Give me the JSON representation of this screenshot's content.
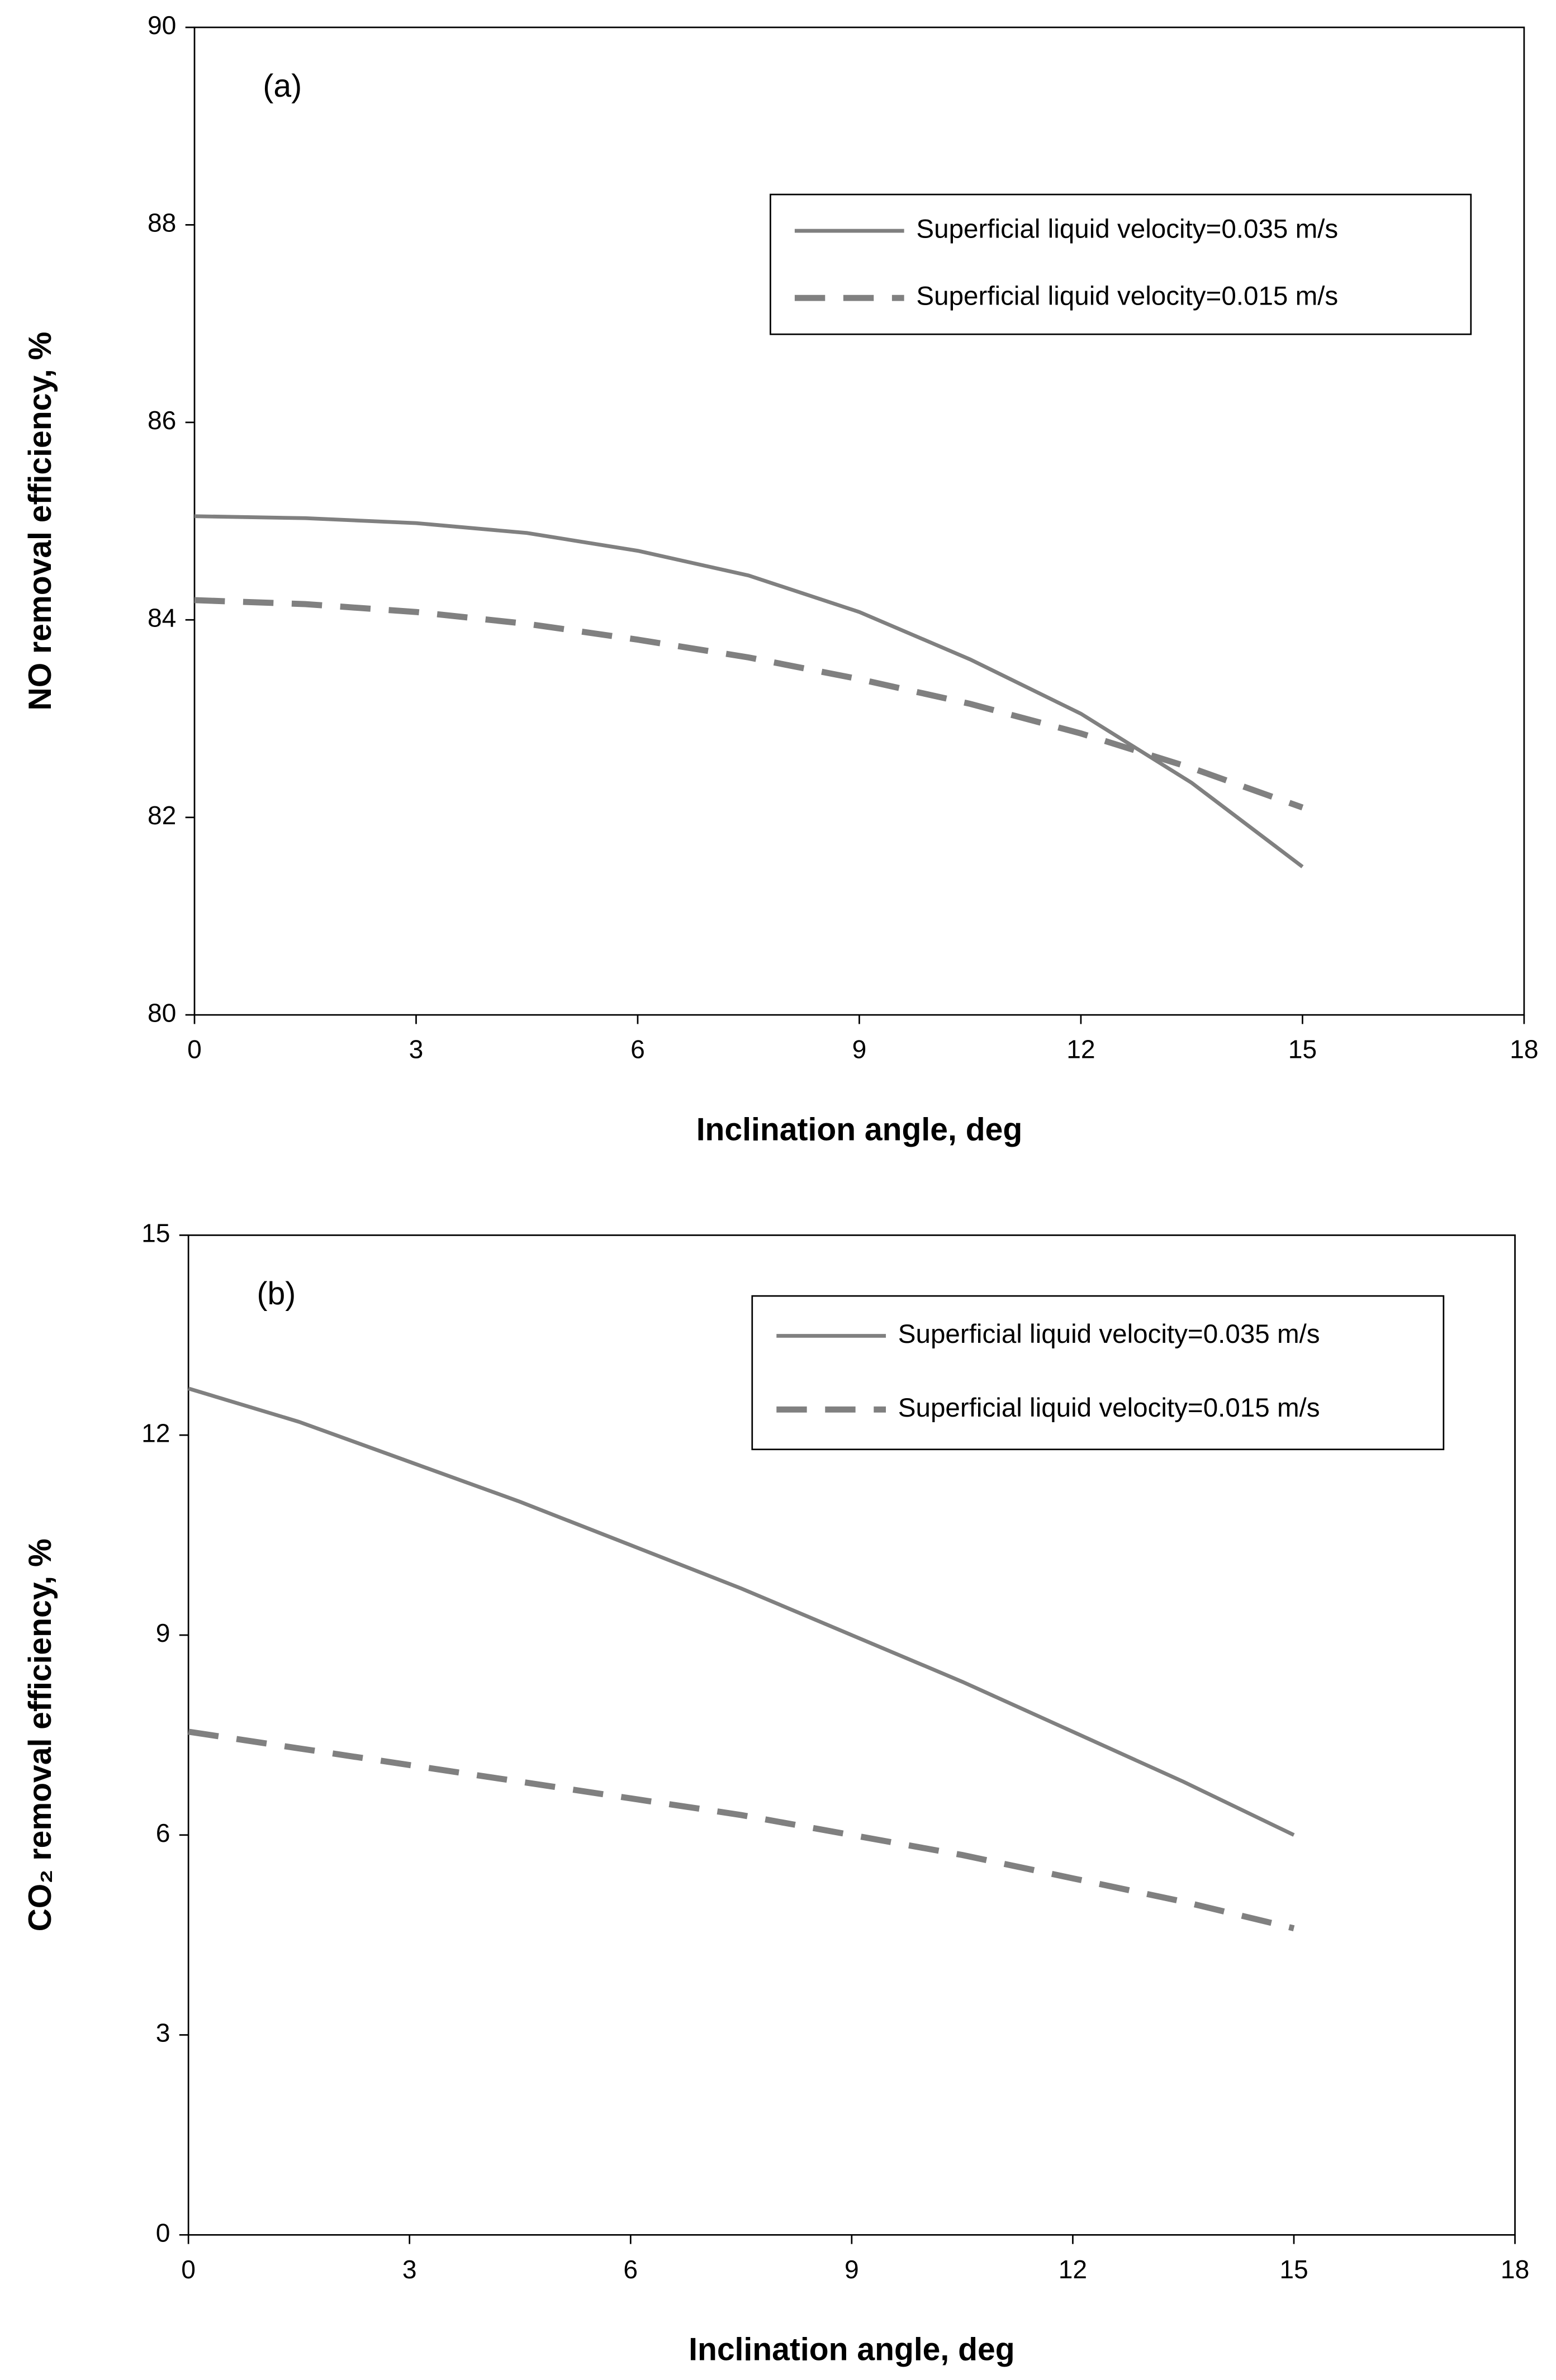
{
  "chart_data": [
    {
      "type": "line",
      "annotation": "(a)",
      "xlabel": "Inclination angle, deg",
      "ylabel": "NO removal efficiency, %",
      "x": [
        0,
        1.5,
        3,
        4.5,
        6,
        7.5,
        9,
        10.5,
        12,
        13.5,
        15
      ],
      "series": [
        {
          "name": "Superficial liquid velocity=0.035 m/s",
          "color": "#808080",
          "style": "solid",
          "values": [
            85.05,
            85.03,
            84.98,
            84.88,
            84.7,
            84.45,
            84.08,
            83.6,
            83.05,
            82.35,
            81.5
          ]
        },
        {
          "name": "Superficial liquid velocity=0.015 m/s",
          "color": "#808080",
          "style": "dashed",
          "values": [
            84.2,
            84.16,
            84.08,
            83.96,
            83.8,
            83.62,
            83.4,
            83.15,
            82.85,
            82.5,
            82.1
          ]
        }
      ],
      "xlim": [
        0,
        18
      ],
      "xticks": [
        0,
        3,
        6,
        9,
        12,
        15,
        18
      ],
      "ylim": [
        80,
        90
      ],
      "yticks": [
        80,
        82,
        84,
        86,
        88,
        90
      ],
      "grid": false,
      "legend": "upper right"
    },
    {
      "type": "line",
      "annotation": "(b)",
      "xlabel": "Inclination angle, deg",
      "ylabel": "CO₂ removal efficiency, %",
      "x": [
        0,
        1.5,
        3,
        4.5,
        6,
        7.5,
        9,
        10.5,
        12,
        13.5,
        15
      ],
      "series": [
        {
          "name": "Superficial liquid velocity=0.035 m/s",
          "color": "#808080",
          "style": "solid",
          "values": [
            12.7,
            12.2,
            11.6,
            11.0,
            10.35,
            9.7,
            9.0,
            8.3,
            7.55,
            6.8,
            6.0
          ]
        },
        {
          "name": "Superficial liquid velocity=0.015 m/s",
          "color": "#808080",
          "style": "dashed",
          "values": [
            7.55,
            7.3,
            7.05,
            6.8,
            6.55,
            6.3,
            6.0,
            5.7,
            5.35,
            5.0,
            4.6
          ]
        }
      ],
      "xlim": [
        0,
        18
      ],
      "xticks": [
        0,
        3,
        6,
        9,
        12,
        15,
        18
      ],
      "ylim": [
        0,
        15
      ],
      "yticks": [
        0,
        3,
        6,
        9,
        12,
        15
      ],
      "grid": false,
      "legend": "upper right"
    }
  ]
}
